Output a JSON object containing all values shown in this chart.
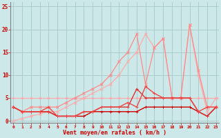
{
  "background_color": "#cce8e8",
  "grid_color": "#aacccc",
  "xlabel": "Vent moyen/en rafales ( km/h )",
  "xlabel_color": "#cc0000",
  "tick_color": "#cc0000",
  "xticks": [
    0,
    1,
    2,
    3,
    4,
    5,
    6,
    7,
    8,
    9,
    10,
    11,
    12,
    13,
    14,
    15,
    16,
    17,
    18,
    19,
    20,
    21,
    22,
    23
  ],
  "yticks": [
    0,
    5,
    10,
    15,
    20,
    25
  ],
  "ylim": [
    -0.5,
    26
  ],
  "xlim": [
    -0.3,
    23.3
  ],
  "lines": [
    {
      "x": [
        0,
        1,
        2,
        3,
        4,
        5,
        6,
        7,
        8,
        9,
        10,
        11,
        12,
        13,
        14,
        15,
        16,
        17,
        18,
        19,
        20,
        21,
        22,
        23
      ],
      "y": [
        5,
        5,
        5,
        5,
        5,
        5,
        5,
        5,
        5,
        5,
        5,
        5,
        5,
        5,
        5,
        5,
        5,
        5,
        5,
        5,
        5,
        5,
        5,
        5
      ],
      "color": "#ffaaaa",
      "lw": 0.9,
      "marker": "D",
      "ms": 1.5
    },
    {
      "x": [
        0,
        1,
        2,
        3,
        4,
        5,
        6,
        7,
        8,
        9,
        10,
        11,
        12,
        13,
        14,
        15,
        16,
        17,
        18,
        19,
        20,
        21,
        22,
        23
      ],
      "y": [
        0,
        0.5,
        1,
        1.5,
        2,
        2,
        3,
        4,
        5,
        6,
        7,
        8,
        10,
        13,
        15,
        19,
        16,
        18,
        5,
        5,
        21,
        10,
        2,
        5
      ],
      "color": "#ffaaaa",
      "lw": 0.9,
      "marker": "x",
      "ms": 2.5
    },
    {
      "x": [
        0,
        1,
        2,
        3,
        4,
        5,
        6,
        7,
        8,
        9,
        10,
        11,
        12,
        13,
        14,
        15,
        16,
        17,
        18,
        19,
        20,
        21,
        22,
        23
      ],
      "y": [
        3,
        2,
        3,
        3,
        3,
        3,
        4,
        5,
        6,
        7,
        8,
        10,
        13,
        15,
        19,
        8,
        16,
        18,
        5,
        5,
        21,
        11,
        3,
        3
      ],
      "color": "#ff8888",
      "lw": 0.9,
      "marker": "x",
      "ms": 2.5
    },
    {
      "x": [
        0,
        1,
        2,
        3,
        4,
        5,
        6,
        7,
        8,
        9,
        10,
        11,
        12,
        13,
        14,
        15,
        16,
        17,
        18,
        19,
        20,
        21,
        22,
        23
      ],
      "y": [
        3,
        2,
        2,
        2,
        2,
        1,
        1,
        1,
        1,
        2,
        2,
        2,
        2,
        2,
        2,
        3,
        3,
        3,
        3,
        3,
        3,
        2,
        1,
        3
      ],
      "color": "#cc0000",
      "lw": 1.0,
      "marker": "+",
      "ms": 3
    },
    {
      "x": [
        0,
        1,
        2,
        3,
        4,
        5,
        6,
        7,
        8,
        9,
        10,
        11,
        12,
        13,
        14,
        15,
        16,
        17,
        18,
        19,
        20,
        21,
        22,
        23
      ],
      "y": [
        3,
        2,
        2,
        2,
        2,
        1,
        1,
        1,
        2,
        2,
        3,
        3,
        3,
        3,
        7,
        5,
        5,
        5,
        5,
        5,
        5,
        2,
        1,
        3
      ],
      "color": "#dd3333",
      "lw": 1.0,
      "marker": "+",
      "ms": 3
    },
    {
      "x": [
        0,
        1,
        2,
        3,
        4,
        5,
        6,
        7,
        8,
        9,
        10,
        11,
        12,
        13,
        14,
        15,
        16,
        17,
        18,
        19,
        20,
        21,
        22,
        23
      ],
      "y": [
        3,
        2,
        2,
        2,
        3,
        1,
        1,
        1,
        2,
        2,
        3,
        3,
        3,
        4,
        3,
        7.5,
        6,
        5,
        5,
        5,
        5,
        2,
        3,
        3
      ],
      "color": "#ee4444",
      "lw": 1.0,
      "marker": "+",
      "ms": 3
    }
  ],
  "figsize": [
    3.2,
    2.0
  ],
  "dpi": 100
}
